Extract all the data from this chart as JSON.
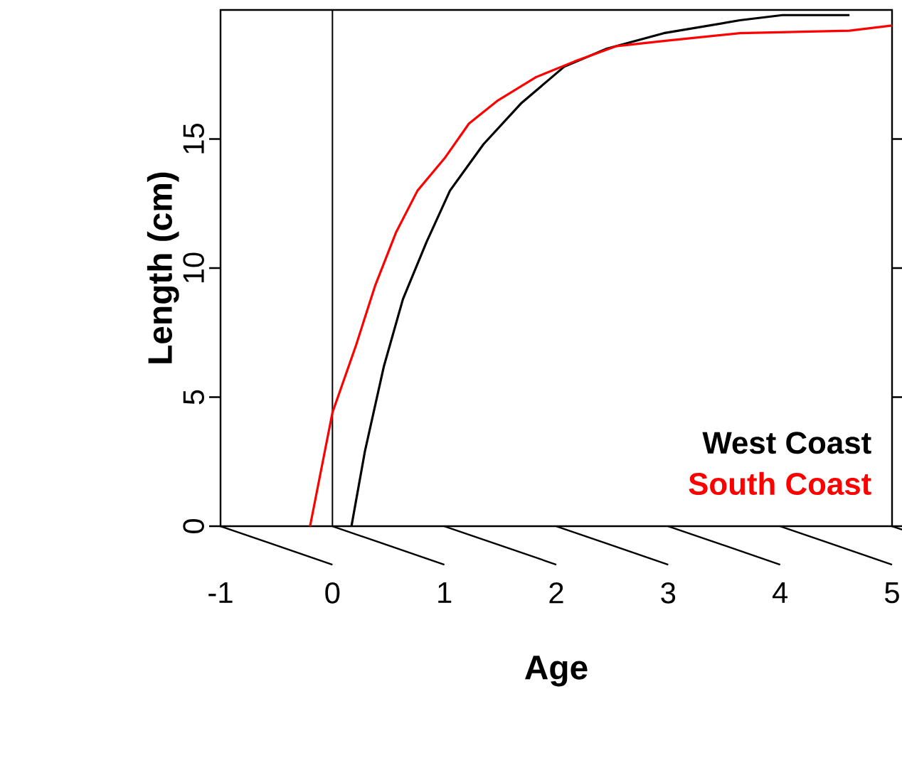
{
  "chart_data": {
    "type": "line",
    "xlabel": "Age",
    "ylabel": "Length (cm)",
    "xlim": [
      -1,
      5
    ],
    "ylim": [
      0,
      20
    ],
    "xticks": [
      -1,
      0,
      1,
      2,
      3,
      4,
      5
    ],
    "yticks": [
      0,
      5,
      10,
      15
    ],
    "legend": "bottom right",
    "line_style": "solid",
    "marker": "none",
    "ref_lines": [
      {
        "axis": "x",
        "value": 0,
        "color": "#000000"
      }
    ],
    "series": [
      {
        "name": "West Coast",
        "color": "#000000",
        "x": [
          0.17,
          0.29,
          0.46,
          0.63,
          0.84,
          1.05,
          1.35,
          1.69,
          2.07,
          2.45,
          2.96,
          3.64,
          4.02,
          4.62
        ],
        "values": [
          0,
          2.9,
          6.2,
          8.8,
          11.0,
          13.0,
          14.8,
          16.4,
          17.8,
          18.5,
          19.1,
          19.6,
          19.8,
          19.8
        ]
      },
      {
        "name": "South Coast",
        "color": "#ff0000",
        "x": [
          -0.2,
          0,
          0.21,
          0.38,
          0.57,
          0.76,
          1.01,
          1.22,
          1.48,
          1.82,
          2.16,
          2.54,
          2.96,
          3.64,
          4.62,
          5.0
        ],
        "values": [
          0,
          4.4,
          7.0,
          9.3,
          11.4,
          13.0,
          14.3,
          15.6,
          16.5,
          17.4,
          18.0,
          18.6,
          18.8,
          19.1,
          19.2,
          19.4
        ]
      }
    ]
  }
}
